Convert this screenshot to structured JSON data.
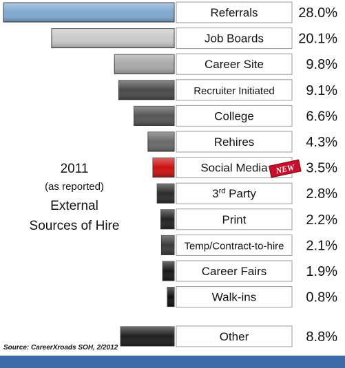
{
  "chart_data": {
    "type": "bar",
    "orientation": "horizontal",
    "title": "",
    "xlabel": "",
    "ylabel": "",
    "xlim": [
      0,
      28.0
    ],
    "grid": false,
    "legend": "none",
    "categories": [
      "Referrals",
      "Job Boards",
      "Career Site",
      "Recruiter Initiated",
      "College",
      "Rehires",
      "Social Media",
      "3rd Party",
      "Print",
      "Temp/Contract-to-hire",
      "Career Fairs",
      "Walk-ins",
      "Other"
    ],
    "values": [
      28.0,
      20.1,
      9.8,
      9.1,
      6.6,
      4.3,
      3.5,
      2.8,
      2.2,
      2.1,
      1.9,
      0.8,
      8.8
    ],
    "value_labels": [
      "28.0%",
      "20.1%",
      "9.8%",
      "9.1%",
      "6.6%",
      "4.3%",
      "3.5%",
      "2.8%",
      "2.2%",
      "2.1%",
      "1.9%",
      "0.8%",
      "8.8%"
    ],
    "bar_colors": [
      "#7fa9cf",
      "#c9c9c9",
      "#a9a9a9",
      "#4a4a4a",
      "#555555",
      "#6a6a6a",
      "#cc1111",
      "#2b2b2b",
      "#222222",
      "#3a3a3a",
      "#1a1a1a",
      "#111111",
      "#1e1e1e"
    ],
    "badge": {
      "category": "Social Media",
      "text": "NEW",
      "color": "#c8102e"
    }
  },
  "caption": {
    "year": "2011",
    "note": "(as reported)",
    "line1": "External",
    "line2": "Sources of Hire"
  },
  "source": "Source: CareerXroads SOH, 2/2012"
}
